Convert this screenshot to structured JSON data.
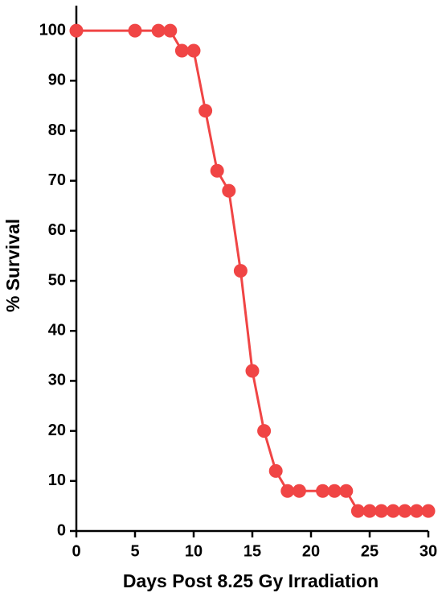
{
  "chart_data": {
    "type": "line",
    "x_label": "Days Post 8.25 Gy Irradiation",
    "y_label": "% Survival",
    "x": [
      0,
      5,
      7,
      8,
      9,
      10,
      11,
      12,
      13,
      14,
      15,
      16,
      17,
      18,
      19,
      21,
      22,
      23,
      24,
      25,
      26,
      27,
      28,
      29,
      30
    ],
    "series": [
      {
        "color": "#f04545",
        "values": [
          100,
          100,
          100,
          100,
          96,
          96,
          84,
          72,
          68,
          52,
          32,
          20,
          12,
          8,
          8,
          8,
          8,
          8,
          4,
          4,
          4,
          4,
          4,
          4,
          4
        ]
      }
    ],
    "xlim": [
      0,
      30
    ],
    "xticks": [
      0,
      5,
      10,
      15,
      20,
      25,
      30
    ],
    "ylim": [
      0,
      105
    ],
    "yticks": [
      0,
      10,
      20,
      30,
      40,
      50,
      60,
      70,
      80,
      90,
      100
    ]
  }
}
